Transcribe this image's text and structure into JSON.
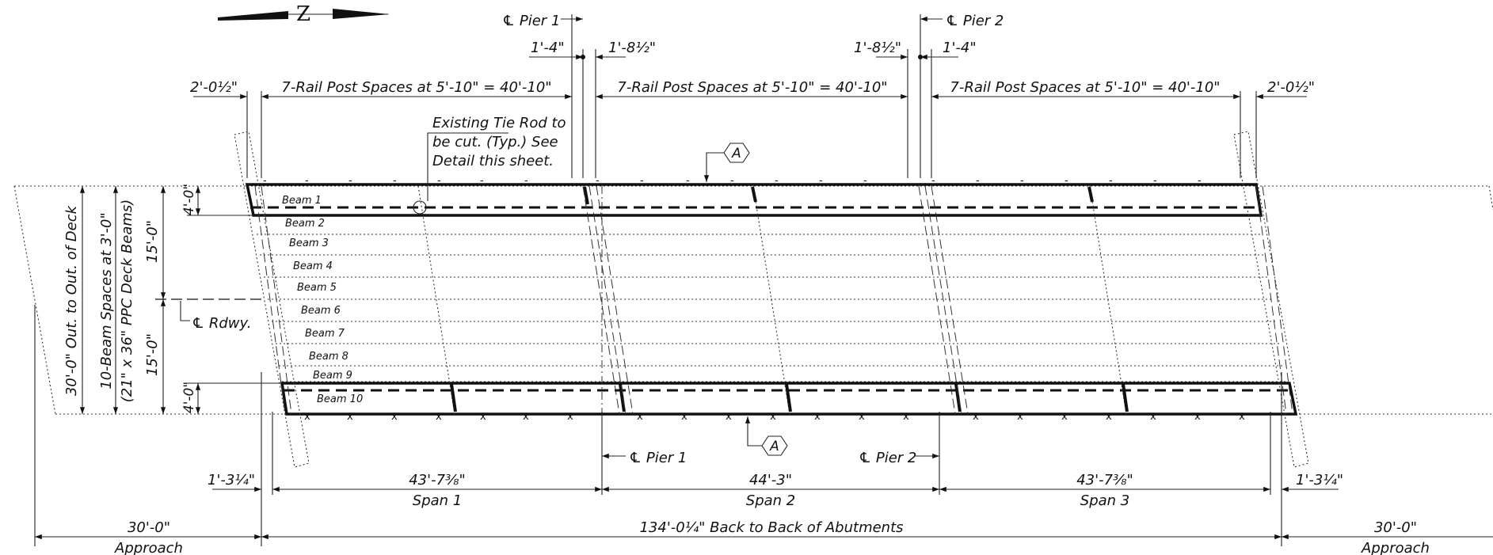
{
  "north_arrow": {
    "letter": "Z"
  },
  "piers": {
    "pier1_top": "℄ Pier 1",
    "pier2_top": "℄ Pier 2",
    "pier1_bottom": "℄ Pier 1",
    "pier2_bottom": "℄ Pier 2"
  },
  "top_dims": {
    "pier1_left": "1'-4\"",
    "pier1_right": "1'-8½\"",
    "pier2_left": "1'-8½\"",
    "pier2_right": "1'-4\"",
    "end_left": "2'-0½\"",
    "end_right": "2'-0½\"",
    "rail_span1": "7-Rail Post Spaces at 5'-10\" = 40'-10\"",
    "rail_span2": "7-Rail Post Spaces at 5'-10\" = 40'-10\"",
    "rail_span3": "7-Rail Post Spaces at 5'-10\" = 40'-10\""
  },
  "notes": {
    "tie_rod_line1": "Existing Tie Rod to",
    "tie_rod_line2": "be cut. (Typ.) See",
    "tie_rod_line3": "Detail this sheet.",
    "section_tag_top": "A",
    "section_tag_bottom": "A"
  },
  "beams": [
    "Beam 1",
    "Beam 2",
    "Beam 3",
    "Beam 4",
    "Beam 5",
    "Beam 6",
    "Beam 7",
    "Beam 8",
    "Beam 9",
    "Beam 10"
  ],
  "left_dims": {
    "deck_width": "30'-0\" Out. to Out. of Deck",
    "beam_spaces": "10-Beam Spaces at 3'-0\"",
    "beam_type": "(21\" x 36\" PPC Deck Beams)",
    "half_top": "15'-0\"",
    "half_bottom": "15'-0\"",
    "edge_top": "4'-0\"",
    "edge_bottom": "4'-0\"",
    "roadway_cl": "℄ Rdwy."
  },
  "bottom_dims": {
    "end_left": "1'-3¼\"",
    "end_right": "1'-3¼\"",
    "span1_length": "43'-7⅜\"",
    "span2_length": "44'-3\"",
    "span3_length": "43'-7⅜\"",
    "span1_label": "Span 1",
    "span2_label": "Span 2",
    "span3_label": "Span 3",
    "approach_left_length": "30'-0\"",
    "approach_right_length": "30'-0\"",
    "approach_left_label": "Approach",
    "approach_right_label": "Approach",
    "overall": "134'-0¼\" Back to Back of Abutments"
  }
}
